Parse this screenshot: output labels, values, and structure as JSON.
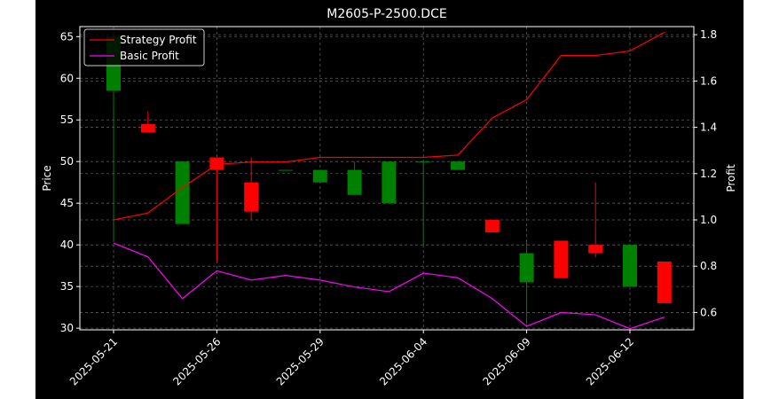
{
  "chart_data": {
    "type": "candlestick",
    "title": "M2605-P-2500.DCE",
    "xlabel": "",
    "ylabel": "Price",
    "y2label": "Profit",
    "ylim": [
      29.8,
      66.2
    ],
    "y2lim": [
      0.525,
      1.835
    ],
    "yticks": [
      30,
      35,
      40,
      45,
      50,
      55,
      60,
      65
    ],
    "y2ticks": [
      0.6,
      0.8,
      1.0,
      1.2,
      1.4,
      1.6,
      1.8
    ],
    "y2tick_labels": [
      "0.6",
      "0.8",
      "1.0",
      "1.2",
      "1.4",
      "1.6",
      "1.8"
    ],
    "xticks": [
      {
        "date": "2025-05-21",
        "label": "2025-05-21"
      },
      {
        "date": "2025-05-26",
        "label": "2025-05-26"
      },
      {
        "date": "2025-05-29",
        "label": "2025-05-29"
      },
      {
        "date": "2025-06-04",
        "label": "2025-06-04"
      },
      {
        "date": "2025-06-09",
        "label": "2025-06-09"
      },
      {
        "date": "2025-06-12",
        "label": "2025-06-12"
      }
    ],
    "grid": true,
    "legend_position": "upper-left",
    "colors": {
      "background": "#000000",
      "text": "#ffffff",
      "grid": "#5a5a5a",
      "up": "#008000",
      "down": "#ff0000",
      "strategy": "#ff0000",
      "basic": "#ff00ff"
    },
    "candles": [
      {
        "date": "2025-05-21",
        "open": 58.5,
        "high": 65.0,
        "low": 40.5,
        "close": 65.0
      },
      {
        "date": "2025-05-22",
        "open": 54.5,
        "high": 56.0,
        "low": 53.5,
        "close": 53.5
      },
      {
        "date": "2025-05-23",
        "open": 42.5,
        "high": 50.0,
        "low": 42.5,
        "close": 50.0
      },
      {
        "date": "2025-05-26",
        "open": 50.5,
        "high": 50.5,
        "low": 38.0,
        "close": 49.0
      },
      {
        "date": "2025-05-27",
        "open": 47.5,
        "high": 50.5,
        "low": 43.0,
        "close": 44.0
      },
      {
        "date": "2025-05-28",
        "open": 49.0,
        "high": 49.0,
        "low": 49.0,
        "close": 49.0
      },
      {
        "date": "2025-05-29",
        "open": 47.5,
        "high": 49.0,
        "low": 47.5,
        "close": 49.0
      },
      {
        "date": "2025-05-30",
        "open": 46.0,
        "high": 50.0,
        "low": 46.0,
        "close": 49.0
      },
      {
        "date": "2025-06-03",
        "open": 45.0,
        "high": 50.0,
        "low": 45.0,
        "close": 50.0
      },
      {
        "date": "2025-06-04",
        "open": 50.0,
        "high": 50.0,
        "low": 40.0,
        "close": 50.0
      },
      {
        "date": "2025-06-05",
        "open": 49.0,
        "high": 50.0,
        "low": 49.0,
        "close": 50.0
      },
      {
        "date": "2025-06-06",
        "open": 43.0,
        "high": 43.0,
        "low": 41.5,
        "close": 41.5
      },
      {
        "date": "2025-06-09",
        "open": 35.5,
        "high": 40.5,
        "low": 30.5,
        "close": 39.0
      },
      {
        "date": "2025-06-10",
        "open": 40.5,
        "high": 40.5,
        "low": 36.0,
        "close": 36.0
      },
      {
        "date": "2025-06-11",
        "open": 40.0,
        "high": 47.5,
        "low": 38.5,
        "close": 39.0
      },
      {
        "date": "2025-06-12",
        "open": 35.0,
        "high": 40.0,
        "low": 35.0,
        "close": 40.0
      },
      {
        "date": "2025-06-13",
        "open": 38.0,
        "high": 38.0,
        "low": 33.0,
        "close": 33.0
      }
    ],
    "series": [
      {
        "name": "Strategy Profit",
        "axis": "right",
        "values": [
          1.0,
          1.03,
          1.14,
          1.24,
          1.25,
          1.25,
          1.27,
          1.27,
          1.27,
          1.27,
          1.28,
          1.44,
          1.52,
          1.71,
          1.71,
          1.73,
          1.81
        ]
      },
      {
        "name": "Basic Profit",
        "axis": "right",
        "values": [
          0.9,
          0.84,
          0.66,
          0.78,
          0.74,
          0.76,
          0.74,
          0.71,
          0.69,
          0.77,
          0.75,
          0.66,
          0.54,
          0.6,
          0.59,
          0.53,
          0.58
        ]
      }
    ]
  }
}
